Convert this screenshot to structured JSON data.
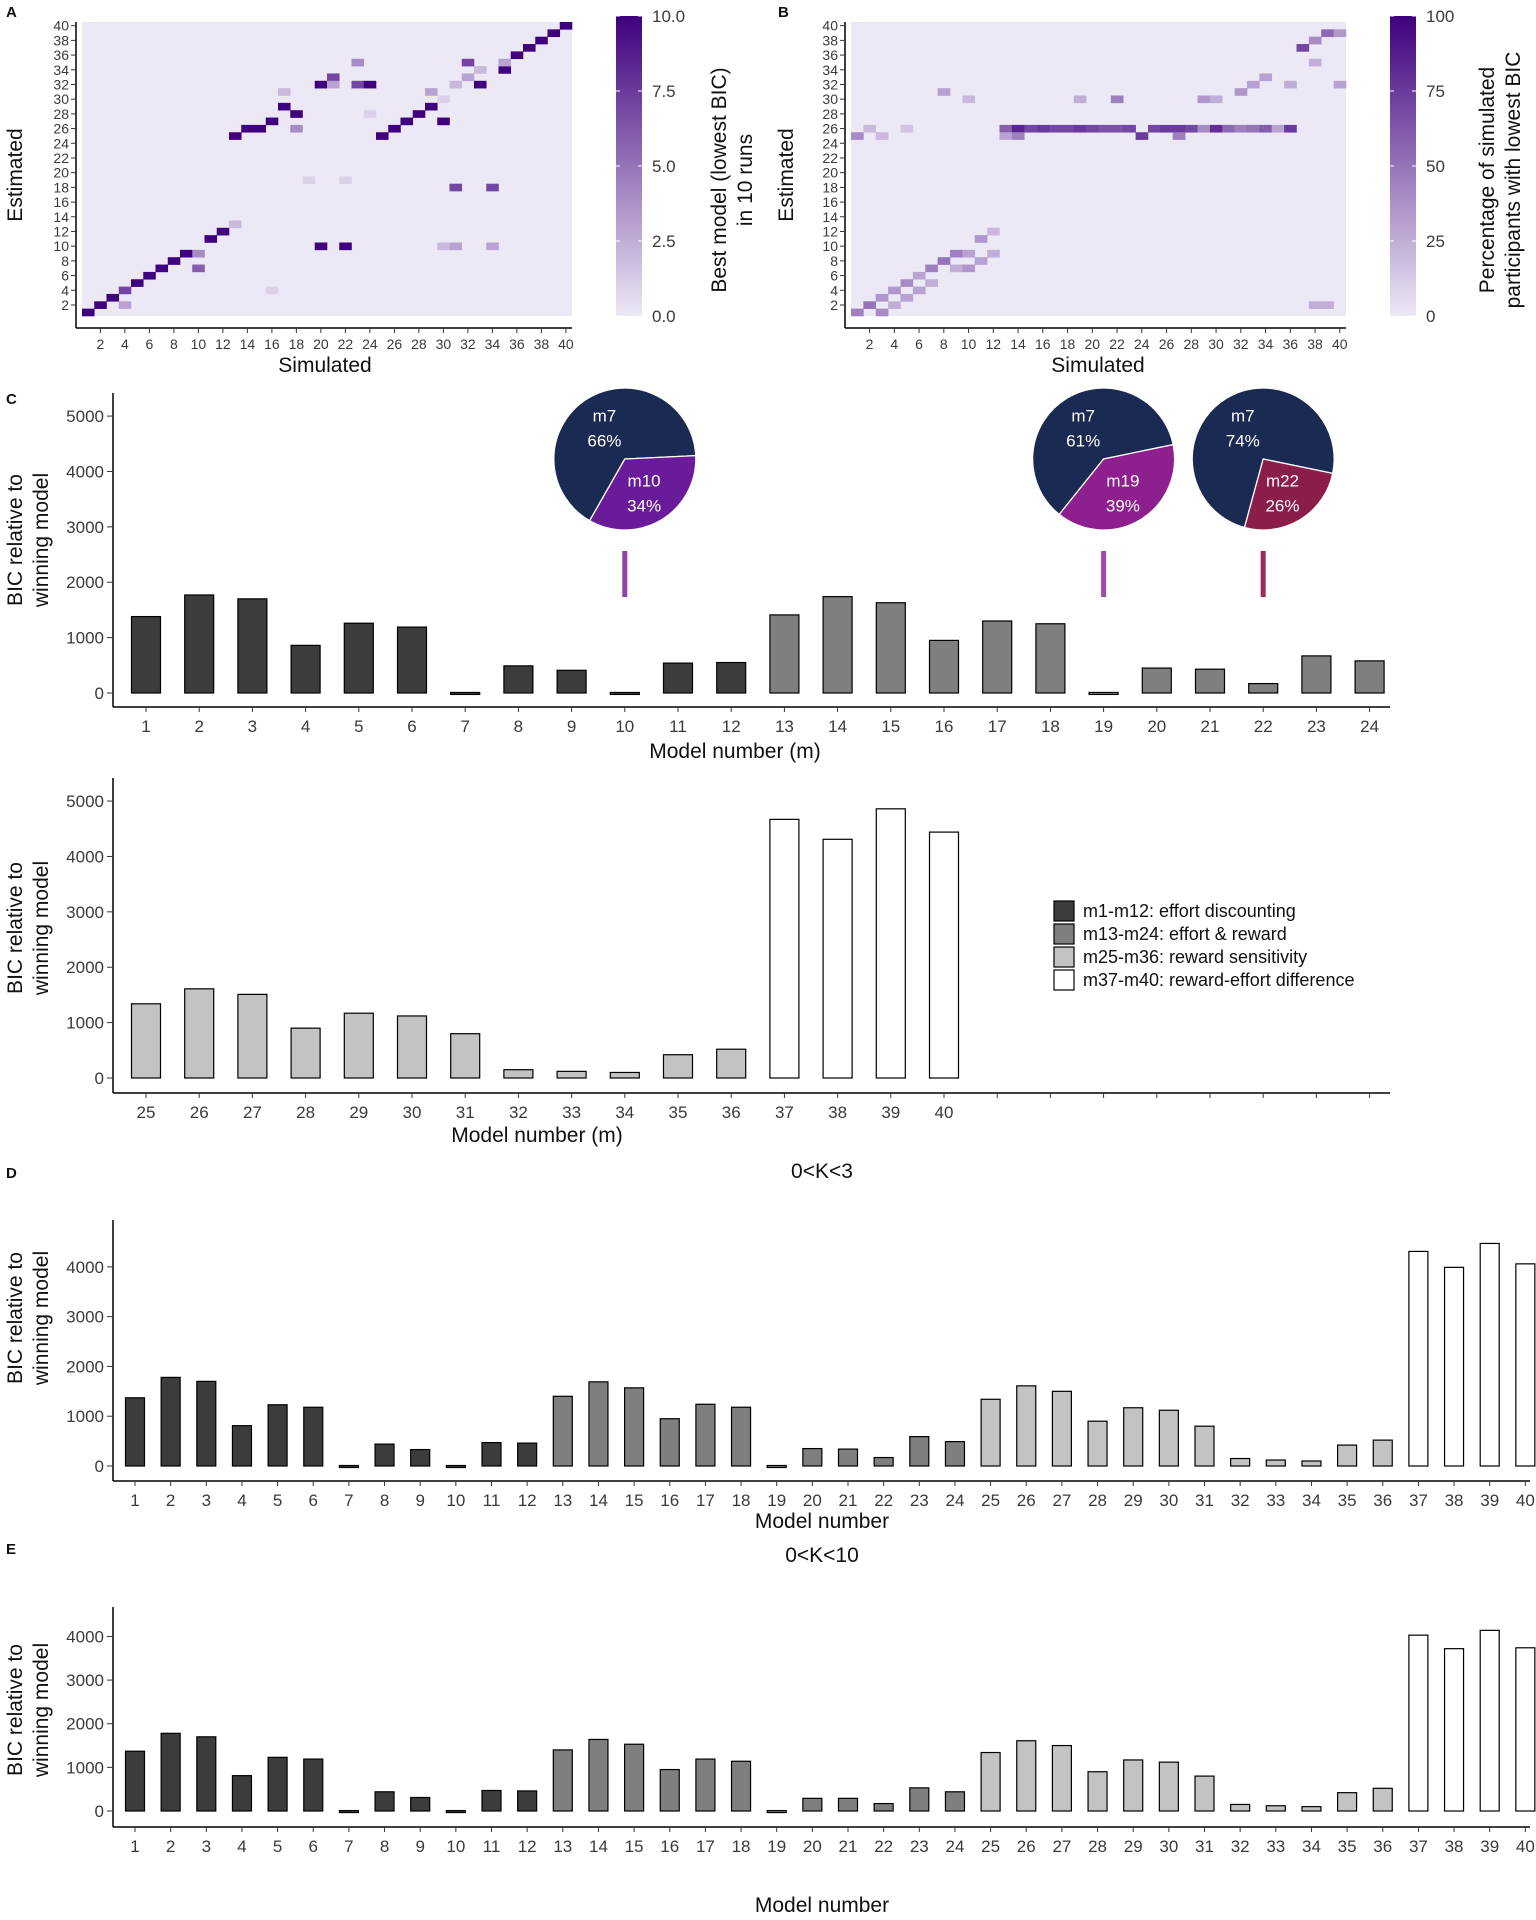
{
  "colors": {
    "heat_low": "#ece8f5",
    "heat_high": "#3f007d",
    "group1": "#3c3c3c",
    "group2": "#7f7f7f",
    "group3": "#c3c3c3",
    "group4": "#ffffff",
    "pie_m7": "#1a2a52",
    "pie_m10": "#6a1b9a",
    "pie_m19": "#8e1f8e",
    "pie_m22": "#8b1d4a",
    "marker_m10": "#8e44a0",
    "marker_m19": "#a04aa8",
    "marker_m22": "#9c2a5c"
  },
  "panel_labels": {
    "a": "A",
    "b": "B",
    "c": "C",
    "d": "D",
    "e": "E"
  },
  "chart_data": [
    {
      "id": "A",
      "type": "heatmap",
      "xlabel": "Simulated",
      "ylabel": "Estimated",
      "x_ticks": [
        2,
        4,
        6,
        8,
        10,
        12,
        14,
        16,
        18,
        20,
        22,
        24,
        26,
        28,
        30,
        32,
        34,
        36,
        38,
        40
      ],
      "y_ticks": [
        2,
        4,
        6,
        8,
        10,
        12,
        14,
        16,
        18,
        20,
        22,
        24,
        26,
        28,
        30,
        32,
        34,
        36,
        38,
        40
      ],
      "n": 40,
      "colorbar": {
        "title_line1": "Best model (lowest BIC)",
        "title_line2": "in 10 runs",
        "min": 0,
        "max": 10,
        "ticks": [
          "0.0",
          "2.5",
          "5.0",
          "7.5",
          "10.0"
        ]
      },
      "cells": [
        [
          1,
          1,
          10
        ],
        [
          2,
          2,
          10
        ],
        [
          3,
          3,
          10
        ],
        [
          4,
          4,
          7
        ],
        [
          4,
          2,
          3
        ],
        [
          5,
          5,
          10
        ],
        [
          6,
          6,
          10
        ],
        [
          7,
          7,
          10
        ],
        [
          8,
          8,
          10
        ],
        [
          9,
          9,
          10
        ],
        [
          10,
          9,
          4
        ],
        [
          10,
          7,
          6
        ],
        [
          11,
          11,
          10
        ],
        [
          12,
          12,
          10
        ],
        [
          13,
          25,
          10
        ],
        [
          13,
          13,
          2
        ],
        [
          14,
          26,
          10
        ],
        [
          15,
          26,
          10
        ],
        [
          16,
          27,
          10
        ],
        [
          16,
          4,
          1
        ],
        [
          17,
          29,
          10
        ],
        [
          17,
          31,
          2
        ],
        [
          18,
          28,
          10
        ],
        [
          18,
          26,
          4
        ],
        [
          19,
          19,
          1
        ],
        [
          20,
          32,
          10
        ],
        [
          20,
          10,
          10
        ],
        [
          21,
          33,
          7
        ],
        [
          21,
          32,
          3
        ],
        [
          22,
          19,
          1
        ],
        [
          22,
          10,
          10
        ],
        [
          23,
          32,
          7
        ],
        [
          23,
          35,
          4
        ],
        [
          24,
          32,
          10
        ],
        [
          25,
          25,
          10
        ],
        [
          26,
          26,
          10
        ],
        [
          27,
          27,
          10
        ],
        [
          28,
          28,
          10
        ],
        [
          29,
          29,
          10
        ],
        [
          29,
          31,
          3
        ],
        [
          30,
          27,
          10
        ],
        [
          30,
          10,
          2
        ],
        [
          31,
          18,
          7
        ],
        [
          31,
          10,
          3
        ],
        [
          31,
          32,
          2
        ],
        [
          32,
          35,
          7
        ],
        [
          32,
          33,
          3
        ],
        [
          33,
          32,
          10
        ],
        [
          33,
          34,
          2
        ],
        [
          34,
          18,
          7
        ],
        [
          34,
          10,
          3
        ],
        [
          35,
          34,
          10
        ],
        [
          35,
          35,
          3
        ],
        [
          36,
          36,
          10
        ],
        [
          37,
          37,
          10
        ],
        [
          38,
          38,
          10
        ],
        [
          39,
          39,
          10
        ],
        [
          40,
          40,
          10
        ],
        [
          30,
          30,
          1
        ],
        [
          24,
          28,
          1
        ]
      ]
    },
    {
      "id": "B",
      "type": "heatmap",
      "xlabel": "Simulated",
      "ylabel": "Estimated",
      "x_ticks": [
        2,
        4,
        6,
        8,
        10,
        12,
        14,
        16,
        18,
        20,
        22,
        24,
        26,
        28,
        30,
        32,
        34,
        36,
        38,
        40
      ],
      "y_ticks": [
        2,
        4,
        6,
        8,
        10,
        12,
        14,
        16,
        18,
        20,
        22,
        24,
        26,
        28,
        30,
        32,
        34,
        36,
        38,
        40
      ],
      "n": 40,
      "colorbar": {
        "title_line1": "Percentage of simulated",
        "title_line2": "participants with lowest BIC",
        "min": 0,
        "max": 100,
        "ticks": [
          "0",
          "25",
          "50",
          "75",
          "100"
        ]
      },
      "cells": [
        [
          1,
          1,
          45
        ],
        [
          1,
          25,
          40
        ],
        [
          2,
          2,
          50
        ],
        [
          2,
          26,
          20
        ],
        [
          3,
          3,
          35
        ],
        [
          3,
          1,
          40
        ],
        [
          3,
          25,
          20
        ],
        [
          4,
          4,
          35
        ],
        [
          4,
          2,
          25
        ],
        [
          5,
          5,
          40
        ],
        [
          5,
          3,
          30
        ],
        [
          5,
          26,
          15
        ],
        [
          6,
          6,
          30
        ],
        [
          6,
          4,
          30
        ],
        [
          7,
          7,
          45
        ],
        [
          7,
          5,
          25
        ],
        [
          8,
          8,
          50
        ],
        [
          8,
          31,
          30
        ],
        [
          9,
          9,
          45
        ],
        [
          9,
          7,
          25
        ],
        [
          10,
          9,
          30
        ],
        [
          10,
          7,
          35
        ],
        [
          10,
          30,
          20
        ],
        [
          11,
          11,
          35
        ],
        [
          11,
          8,
          30
        ],
        [
          12,
          9,
          25
        ],
        [
          12,
          12,
          20
        ],
        [
          13,
          26,
          60
        ],
        [
          13,
          25,
          30
        ],
        [
          14,
          26,
          85
        ],
        [
          14,
          25,
          45
        ],
        [
          15,
          26,
          70
        ],
        [
          16,
          26,
          75
        ],
        [
          17,
          26,
          70
        ],
        [
          18,
          26,
          70
        ],
        [
          19,
          26,
          75
        ],
        [
          19,
          30,
          25
        ],
        [
          20,
          26,
          70
        ],
        [
          21,
          26,
          65
        ],
        [
          22,
          26,
          65
        ],
        [
          22,
          30,
          45
        ],
        [
          23,
          26,
          70
        ],
        [
          24,
          25,
          75
        ],
        [
          25,
          26,
          70
        ],
        [
          26,
          26,
          75
        ],
        [
          27,
          26,
          75
        ],
        [
          27,
          25,
          45
        ],
        [
          28,
          26,
          70
        ],
        [
          29,
          30,
          35
        ],
        [
          29,
          26,
          40
        ],
        [
          30,
          26,
          80
        ],
        [
          30,
          30,
          25
        ],
        [
          31,
          26,
          55
        ],
        [
          32,
          26,
          45
        ],
        [
          32,
          31,
          35
        ],
        [
          33,
          26,
          50
        ],
        [
          34,
          26,
          60
        ],
        [
          34,
          33,
          30
        ],
        [
          35,
          26,
          30
        ],
        [
          36,
          26,
          75
        ],
        [
          37,
          37,
          70
        ],
        [
          38,
          38,
          40
        ],
        [
          38,
          35,
          25
        ],
        [
          39,
          39,
          55
        ],
        [
          40,
          39,
          35
        ],
        [
          40,
          32,
          30
        ],
        [
          39,
          2,
          25
        ],
        [
          38,
          2,
          25
        ],
        [
          36,
          32,
          25
        ],
        [
          33,
          32,
          30
        ]
      ]
    },
    {
      "id": "C1",
      "type": "bar",
      "categories": [
        "1",
        "2",
        "3",
        "4",
        "5",
        "6",
        "7",
        "8",
        "9",
        "10",
        "11",
        "12",
        "13",
        "14",
        "15",
        "16",
        "17",
        "18",
        "19",
        "20",
        "21",
        "22",
        "23",
        "24"
      ],
      "values": [
        1380,
        1770,
        1700,
        860,
        1260,
        1190,
        10,
        490,
        410,
        10,
        540,
        550,
        1410,
        1740,
        1630,
        950,
        1300,
        1250,
        10,
        450,
        430,
        170,
        670,
        580
      ],
      "groups": [
        1,
        1,
        1,
        1,
        1,
        1,
        1,
        1,
        1,
        1,
        1,
        1,
        2,
        2,
        2,
        2,
        2,
        2,
        2,
        2,
        2,
        2,
        2,
        2
      ],
      "xlabel": "Model number (m)",
      "ylabel_line1": "BIC relative to",
      "ylabel_line2": "winning model",
      "yticks": [
        0,
        1000,
        2000,
        3000,
        4000,
        5000
      ],
      "ylim": [
        0,
        5200
      ],
      "pies": [
        {
          "at": 10,
          "slices": [
            {
              "name": "m7",
              "pct": "66%",
              "value": 66
            },
            {
              "name": "m10",
              "pct": "34%",
              "value": 34
            }
          ]
        },
        {
          "at": 19,
          "slices": [
            {
              "name": "m7",
              "pct": "61%",
              "value": 61
            },
            {
              "name": "m19",
              "pct": "39%",
              "value": 39
            }
          ]
        },
        {
          "at": 22,
          "slices": [
            {
              "name": "m7",
              "pct": "74%",
              "value": 74
            },
            {
              "name": "m22",
              "pct": "26%",
              "value": 26
            }
          ]
        }
      ]
    },
    {
      "id": "C2",
      "type": "bar",
      "categories": [
        "25",
        "26",
        "27",
        "28",
        "29",
        "30",
        "31",
        "32",
        "33",
        "34",
        "35",
        "36",
        "37",
        "38",
        "39",
        "40"
      ],
      "values": [
        1340,
        1610,
        1510,
        900,
        1170,
        1120,
        800,
        150,
        120,
        100,
        420,
        520,
        4670,
        4310,
        4860,
        4440
      ],
      "groups": [
        3,
        3,
        3,
        3,
        3,
        3,
        3,
        3,
        3,
        3,
        3,
        3,
        4,
        4,
        4,
        4
      ],
      "xlabel": "Model number (m)",
      "ylabel_line1": "BIC relative to",
      "ylabel_line2": "winning model",
      "yticks": [
        0,
        1000,
        2000,
        3000,
        4000,
        5000
      ],
      "ylim": [
        0,
        5200
      ],
      "legend": [
        {
          "label": "m1-m12: effort discounting",
          "group": 1
        },
        {
          "label": "m13-m24: effort & reward",
          "group": 2
        },
        {
          "label": "m25-m36: reward sensitivity",
          "group": 3
        },
        {
          "label": "m37-m40: reward-effort difference",
          "group": 4
        }
      ]
    },
    {
      "id": "D",
      "type": "bar",
      "title": "0<K<3",
      "categories": [
        "1",
        "2",
        "3",
        "4",
        "5",
        "6",
        "7",
        "8",
        "9",
        "10",
        "11",
        "12",
        "13",
        "14",
        "15",
        "16",
        "17",
        "18",
        "19",
        "20",
        "21",
        "22",
        "23",
        "24",
        "25",
        "26",
        "27",
        "28",
        "29",
        "30",
        "31",
        "32",
        "33",
        "34",
        "35",
        "36",
        "37",
        "38",
        "39",
        "40"
      ],
      "values": [
        1370,
        1780,
        1700,
        810,
        1230,
        1180,
        10,
        440,
        330,
        10,
        470,
        460,
        1400,
        1690,
        1570,
        950,
        1240,
        1180,
        10,
        350,
        340,
        170,
        590,
        490,
        1340,
        1610,
        1500,
        900,
        1170,
        1120,
        800,
        150,
        120,
        100,
        420,
        520,
        4310,
        3990,
        4470,
        4060
      ],
      "groups": [
        1,
        1,
        1,
        1,
        1,
        1,
        1,
        1,
        1,
        1,
        1,
        1,
        2,
        2,
        2,
        2,
        2,
        2,
        2,
        2,
        2,
        2,
        2,
        2,
        3,
        3,
        3,
        3,
        3,
        3,
        3,
        3,
        3,
        3,
        3,
        3,
        4,
        4,
        4,
        4
      ],
      "xlabel": "Model number",
      "ylabel_line1": "BIC relative to",
      "ylabel_line2": "winning model",
      "yticks": [
        0,
        1000,
        2000,
        3000,
        4000
      ],
      "ylim": [
        0,
        4700
      ]
    },
    {
      "id": "E",
      "type": "bar",
      "title": "0<K<10",
      "categories": [
        "1",
        "2",
        "3",
        "4",
        "5",
        "6",
        "7",
        "8",
        "9",
        "10",
        "11",
        "12",
        "13",
        "14",
        "15",
        "16",
        "17",
        "18",
        "19",
        "20",
        "21",
        "22",
        "23",
        "24",
        "25",
        "26",
        "27",
        "28",
        "29",
        "30",
        "31",
        "32",
        "33",
        "34",
        "35",
        "36",
        "37",
        "38",
        "39",
        "40"
      ],
      "values": [
        1370,
        1780,
        1700,
        810,
        1230,
        1190,
        10,
        440,
        310,
        10,
        470,
        460,
        1400,
        1640,
        1530,
        950,
        1190,
        1140,
        10,
        290,
        290,
        170,
        530,
        440,
        1340,
        1610,
        1500,
        900,
        1170,
        1120,
        800,
        150,
        120,
        100,
        420,
        520,
        4030,
        3720,
        4140,
        3740
      ],
      "groups": [
        1,
        1,
        1,
        1,
        1,
        1,
        1,
        1,
        1,
        1,
        1,
        1,
        2,
        2,
        2,
        2,
        2,
        2,
        2,
        2,
        2,
        2,
        2,
        2,
        3,
        3,
        3,
        3,
        3,
        3,
        3,
        3,
        3,
        3,
        3,
        3,
        4,
        4,
        4,
        4
      ],
      "xlabel": "Model number",
      "ylabel_line1": "BIC relative to",
      "ylabel_line2": "winning model",
      "yticks": [
        0,
        1000,
        2000,
        3000,
        4000
      ],
      "ylim": [
        0,
        4400
      ]
    }
  ]
}
